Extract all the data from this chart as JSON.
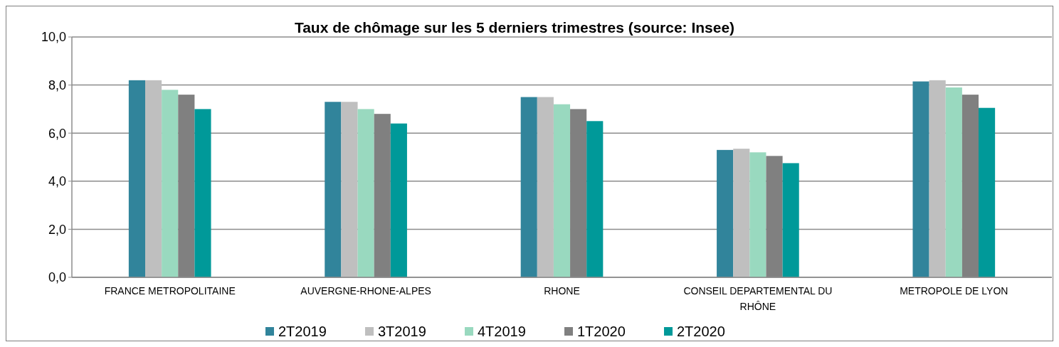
{
  "chart_data": {
    "type": "bar",
    "title": "Taux de chômage sur les 5 derniers trimestres (source: Insee)",
    "categories": [
      "FRANCE METROPOLITAINE",
      "AUVERGNE-RHONE-ALPES",
      "RHONE",
      "CONSEIL DEPARTEMENTAL DU RHÔNE",
      "METROPOLE DE LYON"
    ],
    "series": [
      {
        "name": "2T2019",
        "color": "#31849b",
        "values": [
          8.2,
          7.3,
          7.5,
          5.3,
          8.15
        ]
      },
      {
        "name": "3T2019",
        "color": "#bfbfbf",
        "values": [
          8.2,
          7.3,
          7.5,
          5.35,
          8.2
        ]
      },
      {
        "name": "4T2019",
        "color": "#99d9bf",
        "values": [
          7.8,
          7.0,
          7.2,
          5.2,
          7.9
        ]
      },
      {
        "name": "1T2020",
        "color": "#808080",
        "values": [
          7.6,
          6.8,
          7.0,
          5.05,
          7.6
        ]
      },
      {
        "name": "2T2020",
        "color": "#009999",
        "values": [
          7.0,
          6.4,
          6.5,
          4.75,
          7.05
        ]
      }
    ],
    "ylim": [
      0,
      10
    ],
    "yticks": [
      {
        "value": 0,
        "label": "0,0"
      },
      {
        "value": 2,
        "label": "2,0"
      },
      {
        "value": 4,
        "label": "4,0"
      },
      {
        "value": 6,
        "label": "6,0"
      },
      {
        "value": 8,
        "label": "8,0"
      },
      {
        "value": 10,
        "label": "10,0"
      }
    ],
    "grid": "y",
    "legend": "bottom"
  }
}
